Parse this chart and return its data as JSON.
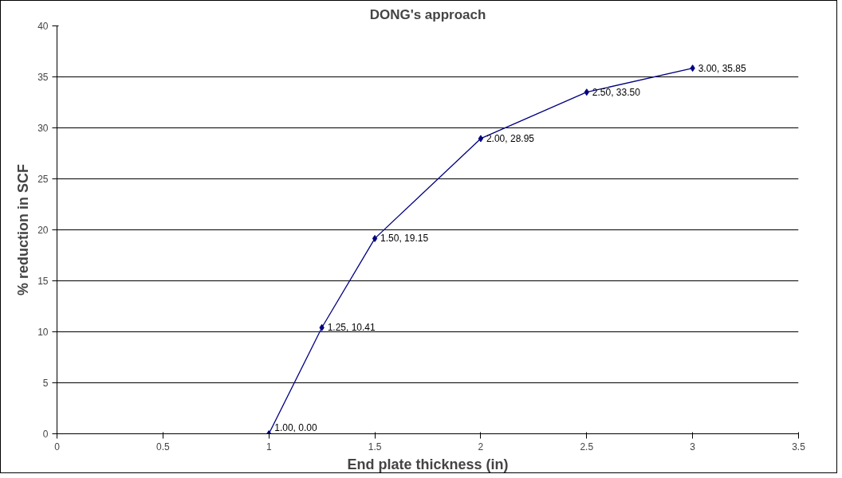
{
  "chart_data": {
    "type": "line",
    "title": "DONG's approach",
    "xlabel": "End plate thickness (in)",
    "ylabel": "% reduction in SCF",
    "x": [
      1.0,
      1.25,
      1.5,
      2.0,
      2.5,
      3.0
    ],
    "series": [
      {
        "color": "#000080",
        "values": [
          0.0,
          10.41,
          19.15,
          28.95,
          33.5,
          35.85
        ],
        "value_labels": [
          "1.00, 0.00",
          "1.25, 10.41",
          "1.50, 19.15",
          "2.00, 28.95",
          "2.50, 33.50",
          "3.00, 35.85"
        ]
      }
    ],
    "xlim": [
      0,
      3.5
    ],
    "xticks": [
      0,
      0.5,
      1,
      1.5,
      2,
      2.5,
      3,
      3.5
    ],
    "ylim": [
      0,
      40
    ],
    "yticks": [
      0,
      5,
      10,
      15,
      20,
      25,
      30,
      35,
      40
    ],
    "grid": "y",
    "marker": "diamond",
    "line_style": "solid"
  }
}
